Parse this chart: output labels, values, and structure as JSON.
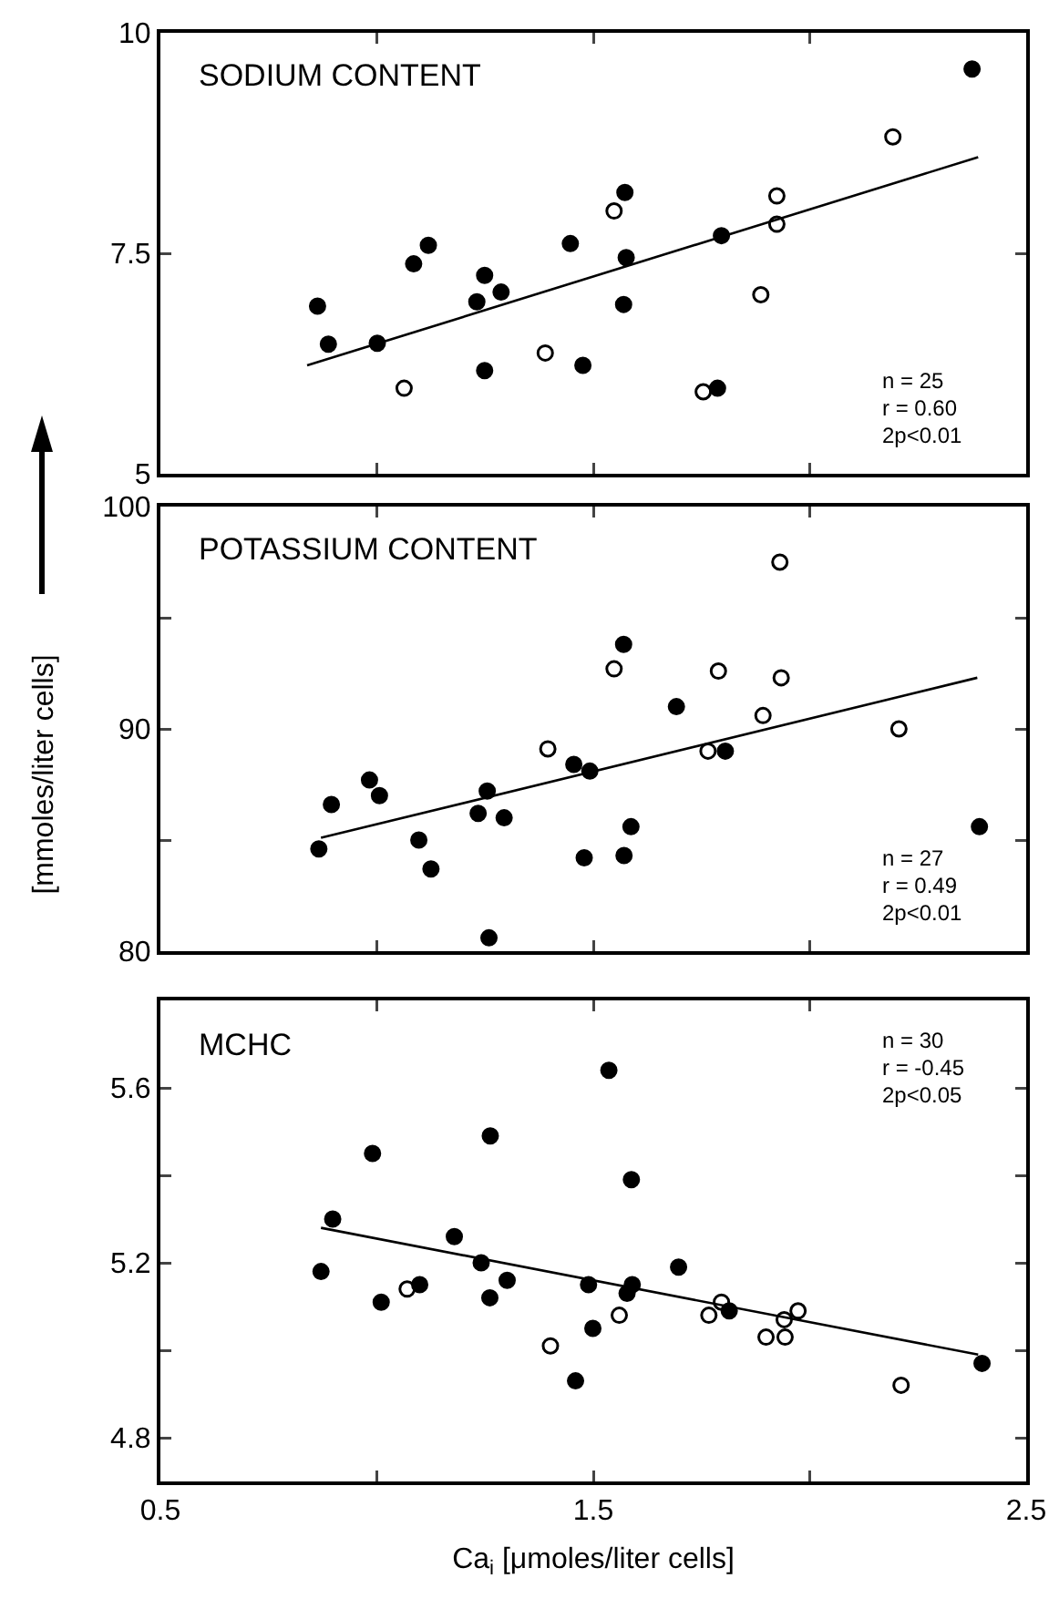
{
  "chart_data": [
    {
      "type": "scatter",
      "title": "SODIUM CONTENT",
      "xlim": [
        0.5,
        2.5
      ],
      "xticks": [
        {
          "value": 0.5,
          "label": null
        },
        {
          "value": 1.0,
          "label": null
        },
        {
          "value": 1.5,
          "label": null
        },
        {
          "value": 2.0,
          "label": null
        },
        {
          "value": 2.5,
          "label": null
        }
      ],
      "ylim": [
        5,
        10
      ],
      "yticks": [
        5,
        7.5,
        10
      ],
      "tick_labels": "y",
      "grid": false,
      "annotations": [
        "n = 25",
        "r = 0.60",
        "2p<0.01"
      ],
      "series": [
        {
          "type": "scatter",
          "marker": "circle",
          "color": "#000000",
          "x": [
            0.863,
            0.888,
            1.001,
            1.085,
            1.119,
            1.231,
            1.249,
            1.249,
            1.287,
            1.447,
            1.476,
            1.573,
            1.576,
            1.57,
            1.796,
            1.787,
            2.375
          ],
          "values": [
            6.9,
            6.47,
            6.48,
            7.38,
            7.59,
            6.95,
            7.25,
            6.17,
            7.06,
            7.61,
            6.23,
            8.19,
            7.45,
            6.92,
            7.7,
            5.97,
            9.59
          ]
        },
        {
          "type": "scatter",
          "marker": "circle-open",
          "color": "#000000",
          "x": [
            1.063,
            1.389,
            1.548,
            1.754,
            1.887,
            1.924,
            1.924,
            2.192
          ],
          "values": [
            5.97,
            6.37,
            7.98,
            5.93,
            7.03,
            8.15,
            7.83,
            8.82
          ]
        },
        {
          "type": "line",
          "marker": "none",
          "line_style": "solid",
          "color": "#000000",
          "x": [
            0.839,
            2.389
          ],
          "values": [
            6.23,
            8.59
          ]
        }
      ]
    },
    {
      "type": "scatter",
      "title": "POTASSIUM CONTENT",
      "ylabel": "[mmoles/liter cells]",
      "xlim": [
        0.5,
        2.5
      ],
      "xticks": [
        {
          "value": 0.5,
          "label": null
        },
        {
          "value": 1.0,
          "label": null
        },
        {
          "value": 1.5,
          "label": null
        },
        {
          "value": 2.0,
          "label": null
        },
        {
          "value": 2.5,
          "label": null
        }
      ],
      "ylim": [
        80,
        100
      ],
      "yticks": [
        80,
        {
          "value": 85,
          "label": null
        },
        90,
        {
          "value": 95,
          "label": null
        },
        100
      ],
      "tick_labels": "y",
      "grid": false,
      "annotations": [
        "n = 27",
        "r = 0.49",
        "2p<0.01"
      ],
      "series": [
        {
          "type": "scatter",
          "marker": "circle",
          "color": "#000000",
          "x": [
            0.866,
            0.895,
            0.983,
            1.006,
            1.097,
            1.125,
            1.234,
            1.255,
            1.259,
            1.294,
            1.455,
            1.492,
            1.479,
            1.57,
            1.587,
            1.571,
            1.692,
            1.805,
            2.392
          ],
          "values": [
            84.6,
            86.6,
            87.7,
            87.0,
            85.0,
            83.7,
            86.2,
            87.2,
            80.6,
            86.0,
            88.4,
            88.1,
            84.2,
            93.8,
            85.6,
            84.3,
            91.0,
            89.0,
            85.6
          ]
        },
        {
          "type": "scatter",
          "marker": "circle-open",
          "color": "#000000",
          "x": [
            1.395,
            1.548,
            1.789,
            1.765,
            1.892,
            1.931,
            1.934,
            2.206
          ],
          "values": [
            89.1,
            92.7,
            92.6,
            89.0,
            90.6,
            97.5,
            92.3,
            90.0
          ]
        },
        {
          "type": "line",
          "marker": "none",
          "line_style": "solid",
          "color": "#000000",
          "x": [
            0.871,
            2.387
          ],
          "values": [
            85.1,
            92.3
          ]
        }
      ]
    },
    {
      "type": "scatter",
      "title": "MCHC",
      "xlabel": "Ca$_{i}$ [μmoles/liter cells]",
      "xlim": [
        0.5,
        2.5
      ],
      "xticks": [
        0.5,
        {
          "value": 1.0,
          "label": null
        },
        1.5,
        {
          "value": 2.0,
          "label": null
        },
        2.5
      ],
      "ylim": [
        4.7,
        5.8
      ],
      "yticks": [
        4.8,
        {
          "value": 5.0,
          "label": null
        },
        5.2,
        {
          "value": 5.4,
          "label": null
        },
        5.6
      ],
      "grid": false,
      "annotations": [
        "n = 30",
        "r = -0.45",
        "2p<0.05"
      ],
      "series": [
        {
          "type": "scatter",
          "marker": "circle",
          "color": "#000000",
          "x": [
            0.871,
            0.898,
            0.99,
            1.01,
            1.099,
            1.179,
            1.241,
            1.262,
            1.261,
            1.301,
            1.459,
            1.489,
            1.499,
            1.536,
            1.578,
            1.59,
            1.588,
            1.697,
            1.814,
            2.398
          ],
          "values": [
            5.18,
            5.3,
            5.45,
            5.11,
            5.15,
            5.26,
            5.2,
            5.49,
            5.12,
            5.16,
            4.93,
            5.15,
            5.05,
            5.64,
            5.13,
            5.15,
            5.39,
            5.19,
            5.09,
            4.97
          ]
        },
        {
          "type": "scatter",
          "marker": "circle-open",
          "color": "#000000",
          "x": [
            1.07,
            1.401,
            1.56,
            1.767,
            1.796,
            1.899,
            1.941,
            1.943,
            1.973,
            2.211
          ],
          "values": [
            5.14,
            5.01,
            5.08,
            5.08,
            5.11,
            5.03,
            5.07,
            5.03,
            5.09,
            4.92
          ]
        },
        {
          "type": "line",
          "marker": "none",
          "line_style": "solid",
          "color": "#000000",
          "x": [
            0.871,
            2.389
          ],
          "values": [
            5.28,
            4.99
          ]
        }
      ]
    }
  ]
}
